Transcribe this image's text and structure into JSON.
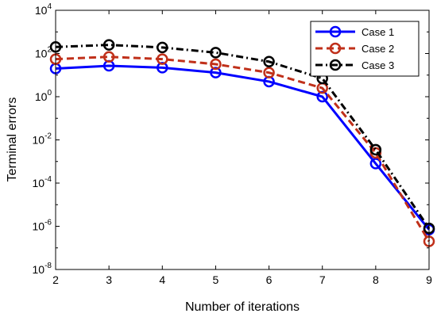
{
  "chart_data": {
    "type": "line",
    "title": "",
    "xlabel": "Number of iterations",
    "ylabel": "Terminal errors",
    "x": [
      2,
      3,
      4,
      5,
      6,
      7,
      8,
      9
    ],
    "xlim": [
      2,
      9
    ],
    "ylim": [
      1e-08,
      10000.0
    ],
    "yscale": "log",
    "x_ticks": [
      "2",
      "3",
      "4",
      "5",
      "6",
      "7",
      "8",
      "9"
    ],
    "y_ticks": [
      {
        "value": 10000.0,
        "base": "10",
        "exp": "4"
      },
      {
        "value": 100.0,
        "base": "10",
        "exp": "2"
      },
      {
        "value": 1.0,
        "base": "10",
        "exp": "0"
      },
      {
        "value": 0.01,
        "base": "10",
        "exp": "-2"
      },
      {
        "value": 0.0001,
        "base": "10",
        "exp": "-4"
      },
      {
        "value": 1e-06,
        "base": "10",
        "exp": "-6"
      },
      {
        "value": 1e-08,
        "base": "10",
        "exp": "-8"
      }
    ],
    "grid": false,
    "legend_position": "top-right",
    "series": [
      {
        "name": "Case 1",
        "color": "#0000ff",
        "line_style": "solid",
        "marker": "circle",
        "values": [
          20,
          27,
          22,
          13,
          5,
          1,
          0.0008,
          7e-07
        ]
      },
      {
        "name": "Case 2",
        "color": "#c0301a",
        "line_style": "dashed",
        "marker": "circle",
        "values": [
          55,
          70,
          55,
          32,
          13,
          2.5,
          0.0025,
          2e-07
        ]
      },
      {
        "name": "Case 3",
        "color": "#000000",
        "line_style": "dashdot",
        "marker": "circle",
        "values": [
          200,
          250,
          190,
          110,
          42,
          7,
          0.0035,
          8e-07
        ]
      }
    ]
  }
}
